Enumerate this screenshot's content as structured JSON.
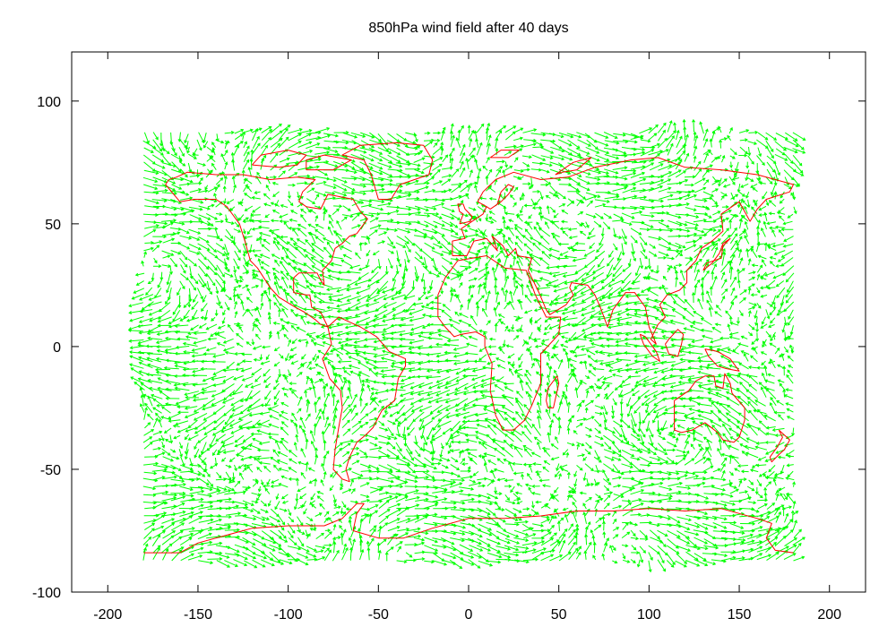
{
  "chart_data": {
    "type": "vector-field",
    "title": "850hPa wind field after 40 days",
    "xlabel": "",
    "ylabel": "",
    "xlim": [
      -220,
      220
    ],
    "ylim": [
      -100,
      120
    ],
    "x_ticks": [
      -200,
      -150,
      -100,
      -50,
      0,
      50,
      100,
      150,
      200
    ],
    "y_ticks": [
      -100,
      -50,
      0,
      50,
      100
    ],
    "grid": false,
    "series": [
      {
        "color": "#00ff00",
        "kind": "wind-vectors",
        "lon_range": [
          -180,
          180
        ],
        "lat_range": [
          -88,
          87
        ]
      },
      {
        "color": "#ff0000",
        "kind": "coastlines"
      }
    ]
  }
}
